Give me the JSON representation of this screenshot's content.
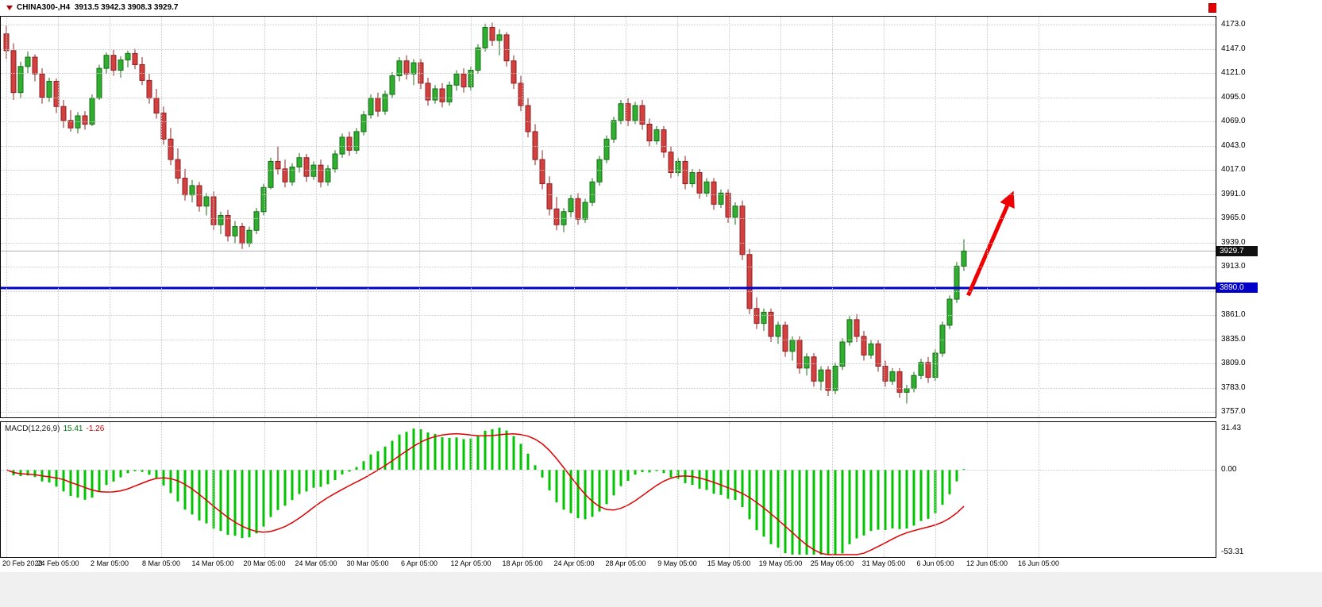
{
  "header": {
    "symbol_period": "CHINA300-,H4",
    "ohlc": "3913.5 3942.3 3908.3 3929.7"
  },
  "price_axis": {
    "labels": [
      "4173.0",
      "4147.0",
      "4121.0",
      "4095.0",
      "4069.0",
      "4043.0",
      "4017.0",
      "3991.0",
      "3965.0",
      "3939.0",
      "3913.0",
      "3887.0",
      "3861.0",
      "3835.0",
      "3809.0",
      "3783.0",
      "3757.0"
    ],
    "current_price_badge": "3929.7",
    "hline_badge": "3890.0"
  },
  "time_axis": {
    "labels": [
      "20 Feb 2023",
      "24 Feb 05:00",
      "2 Mar 05:00",
      "8 Mar 05:00",
      "14 Mar 05:00",
      "20 Mar 05:00",
      "24 Mar 05:00",
      "30 Mar 05:00",
      "6 Apr 05:00",
      "12 Apr 05:00",
      "18 Apr 05:00",
      "24 Apr 05:00",
      "28 Apr 05:00",
      "9 May 05:00",
      "15 May 05:00",
      "19 May 05:00",
      "25 May 05:00",
      "31 May 05:00",
      "6 Jun 05:00",
      "12 Jun 05:00",
      "16 Jun 05:00"
    ]
  },
  "macd": {
    "name": "MACD(12,26,9)",
    "main_value": "15.41",
    "signal_value": "-1.26",
    "axis": {
      "top": "31.43",
      "zero": "0.00",
      "bottom": "-53.31"
    }
  },
  "colors": {
    "bull": "#2fae2f",
    "bull_border": "#156e15",
    "bear": "#d24040",
    "bear_border": "#8f1f1f",
    "macd_hist": "#00c400",
    "macd_signal": "#e00000",
    "hline": "#0000c8",
    "bid_line": "#b0b0b0",
    "badge_last_bg": "#111111",
    "badge_hline_bg": "#0000c8",
    "grid": "#c9c9c9",
    "arrow": "#f00000"
  },
  "chart_data": {
    "type": "candlestick",
    "title": "CHINA300- H4",
    "ylim": [
      3757.0,
      4173.0
    ],
    "grid_step": 26,
    "macd_ylim": [
      -53.31,
      31.43
    ],
    "macd_params": [
      12,
      26,
      9
    ],
    "hline_price": 3890.0,
    "last_price": 3929.7,
    "arrow": {
      "from_bar": 134.6,
      "from_price": 3882,
      "to_bar": 140.6,
      "to_price": 3988
    },
    "candles": [
      [
        4163,
        4172,
        4136,
        4145
      ],
      [
        4145,
        4153,
        4092,
        4100
      ],
      [
        4100,
        4133,
        4094,
        4128
      ],
      [
        4128,
        4144,
        4121,
        4138
      ],
      [
        4138,
        4141,
        4112,
        4120
      ],
      [
        4120,
        4126,
        4088,
        4095
      ],
      [
        4095,
        4116,
        4090,
        4112
      ],
      [
        4112,
        4115,
        4078,
        4085
      ],
      [
        4085,
        4092,
        4062,
        4070
      ],
      [
        4070,
        4081,
        4058,
        4062
      ],
      [
        4062,
        4079,
        4056,
        4075
      ],
      [
        4075,
        4080,
        4060,
        4066
      ],
      [
        4066,
        4098,
        4064,
        4094
      ],
      [
        4094,
        4130,
        4092,
        4126
      ],
      [
        4126,
        4143,
        4120,
        4140
      ],
      [
        4140,
        4146,
        4118,
        4124
      ],
      [
        4124,
        4139,
        4116,
        4135
      ],
      [
        4135,
        4145,
        4127,
        4142
      ],
      [
        4142,
        4147,
        4125,
        4130
      ],
      [
        4130,
        4138,
        4108,
        4113
      ],
      [
        4113,
        4120,
        4088,
        4094
      ],
      [
        4094,
        4104,
        4072,
        4078
      ],
      [
        4078,
        4085,
        4044,
        4050
      ],
      [
        4050,
        4062,
        4022,
        4028
      ],
      [
        4028,
        4040,
        4002,
        4008
      ],
      [
        4008,
        4018,
        3984,
        3990
      ],
      [
        3990,
        4006,
        3982,
        4000
      ],
      [
        4000,
        4004,
        3972,
        3978
      ],
      [
        3978,
        3992,
        3968,
        3988
      ],
      [
        3988,
        3994,
        3952,
        3958
      ],
      [
        3958,
        3972,
        3948,
        3968
      ],
      [
        3968,
        3974,
        3940,
        3946
      ],
      [
        3946,
        3962,
        3938,
        3956
      ],
      [
        3956,
        3960,
        3932,
        3938
      ],
      [
        3938,
        3956,
        3934,
        3952
      ],
      [
        3952,
        3976,
        3948,
        3972
      ],
      [
        3972,
        4002,
        3968,
        3998
      ],
      [
        3998,
        4030,
        3996,
        4026
      ],
      [
        4026,
        4042,
        4012,
        4018
      ],
      [
        4018,
        4028,
        3998,
        4004
      ],
      [
        4004,
        4024,
        4000,
        4020
      ],
      [
        4020,
        4035,
        4014,
        4030
      ],
      [
        4030,
        4034,
        4004,
        4010
      ],
      [
        4010,
        4026,
        4006,
        4022
      ],
      [
        4022,
        4028,
        3998,
        4004
      ],
      [
        4004,
        4022,
        4000,
        4018
      ],
      [
        4018,
        4038,
        4014,
        4034
      ],
      [
        4034,
        4056,
        4030,
        4052
      ],
      [
        4052,
        4058,
        4032,
        4038
      ],
      [
        4038,
        4062,
        4034,
        4058
      ],
      [
        4058,
        4080,
        4054,
        4076
      ],
      [
        4076,
        4098,
        4072,
        4094
      ],
      [
        4094,
        4100,
        4074,
        4080
      ],
      [
        4080,
        4102,
        4076,
        4098
      ],
      [
        4098,
        4122,
        4094,
        4118
      ],
      [
        4118,
        4138,
        4112,
        4134
      ],
      [
        4134,
        4140,
        4114,
        4120
      ],
      [
        4120,
        4136,
        4108,
        4132
      ],
      [
        4132,
        4136,
        4104,
        4110
      ],
      [
        4110,
        4116,
        4086,
        4092
      ],
      [
        4092,
        4108,
        4088,
        4104
      ],
      [
        4104,
        4110,
        4084,
        4090
      ],
      [
        4090,
        4112,
        4086,
        4108
      ],
      [
        4108,
        4124,
        4102,
        4120
      ],
      [
        4120,
        4126,
        4100,
        4106
      ],
      [
        4106,
        4128,
        4102,
        4124
      ],
      [
        4124,
        4152,
        4120,
        4148
      ],
      [
        4148,
        4174,
        4144,
        4170
      ],
      [
        4170,
        4175,
        4150,
        4156
      ],
      [
        4156,
        4168,
        4140,
        4162
      ],
      [
        4162,
        4165,
        4128,
        4134
      ],
      [
        4134,
        4140,
        4104,
        4110
      ],
      [
        4110,
        4118,
        4080,
        4086
      ],
      [
        4086,
        4094,
        4052,
        4058
      ],
      [
        4058,
        4066,
        4022,
        4028
      ],
      [
        4028,
        4038,
        3996,
        4002
      ],
      [
        4002,
        4010,
        3968,
        3975
      ],
      [
        3975,
        3988,
        3952,
        3958
      ],
      [
        3958,
        3976,
        3950,
        3972
      ],
      [
        3972,
        3990,
        3966,
        3986
      ],
      [
        3986,
        3992,
        3958,
        3964
      ],
      [
        3964,
        3986,
        3960,
        3982
      ],
      [
        3982,
        4008,
        3978,
        4004
      ],
      [
        4004,
        4032,
        4000,
        4028
      ],
      [
        4028,
        4054,
        4024,
        4050
      ],
      [
        4050,
        4074,
        4046,
        4070
      ],
      [
        4070,
        4092,
        4066,
        4088
      ],
      [
        4088,
        4094,
        4064,
        4070
      ],
      [
        4070,
        4090,
        4066,
        4086
      ],
      [
        4086,
        4092,
        4060,
        4066
      ],
      [
        4066,
        4072,
        4042,
        4048
      ],
      [
        4048,
        4064,
        4044,
        4060
      ],
      [
        4060,
        4064,
        4030,
        4036
      ],
      [
        4036,
        4042,
        4008,
        4014
      ],
      [
        4014,
        4030,
        4010,
        4026
      ],
      [
        4026,
        4032,
        3996,
        4002
      ],
      [
        4002,
        4018,
        3998,
        4014
      ],
      [
        4014,
        4018,
        3986,
        3992
      ],
      [
        3992,
        4008,
        3988,
        4004
      ],
      [
        4004,
        4008,
        3974,
        3980
      ],
      [
        3980,
        3996,
        3976,
        3992
      ],
      [
        3992,
        3996,
        3960,
        3966
      ],
      [
        3966,
        3982,
        3958,
        3978
      ],
      [
        3978,
        3984,
        3920,
        3926
      ],
      [
        3926,
        3932,
        3862,
        3868
      ],
      [
        3868,
        3880,
        3846,
        3852
      ],
      [
        3852,
        3868,
        3844,
        3864
      ],
      [
        3864,
        3868,
        3832,
        3838
      ],
      [
        3838,
        3854,
        3830,
        3850
      ],
      [
        3850,
        3854,
        3816,
        3822
      ],
      [
        3822,
        3838,
        3812,
        3834
      ],
      [
        3834,
        3838,
        3798,
        3804
      ],
      [
        3804,
        3820,
        3796,
        3816
      ],
      [
        3816,
        3820,
        3784,
        3790
      ],
      [
        3790,
        3806,
        3780,
        3802
      ],
      [
        3802,
        3806,
        3774,
        3780
      ],
      [
        3780,
        3810,
        3776,
        3806
      ],
      [
        3806,
        3836,
        3802,
        3832
      ],
      [
        3832,
        3860,
        3828,
        3856
      ],
      [
        3856,
        3862,
        3832,
        3838
      ],
      [
        3838,
        3844,
        3812,
        3818
      ],
      [
        3818,
        3834,
        3814,
        3830
      ],
      [
        3830,
        3834,
        3800,
        3806
      ],
      [
        3806,
        3812,
        3784,
        3790
      ],
      [
        3790,
        3804,
        3786,
        3800
      ],
      [
        3800,
        3804,
        3772,
        3778
      ],
      [
        3778,
        3786,
        3766,
        3782
      ],
      [
        3782,
        3800,
        3778,
        3796
      ],
      [
        3796,
        3814,
        3792,
        3810
      ],
      [
        3810,
        3816,
        3788,
        3794
      ],
      [
        3794,
        3824,
        3790,
        3820
      ],
      [
        3820,
        3854,
        3816,
        3850
      ],
      [
        3850,
        3882,
        3846,
        3878
      ],
      [
        3878,
        3918,
        3874,
        3913.5
      ],
      [
        3913.5,
        3942.3,
        3908.3,
        3929.7
      ]
    ]
  }
}
